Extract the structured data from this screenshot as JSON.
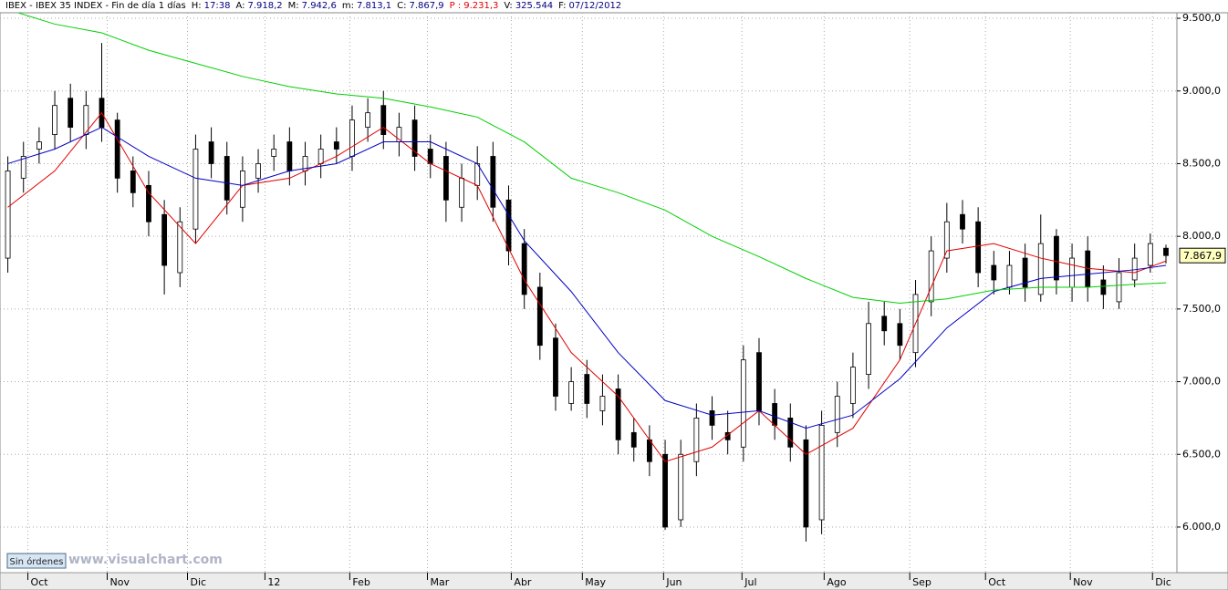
{
  "header": {
    "title": "IBEX - IBEX 35 INDEX - Fin de día 1 días",
    "items": [
      {
        "label": "H:",
        "value": "17:38",
        "color": "#000080"
      },
      {
        "label": "A:",
        "value": "7.918,2",
        "color": "#000080"
      },
      {
        "label": "M:",
        "value": "7.942,6",
        "color": "#000080"
      },
      {
        "label": "m:",
        "value": "7.813,1",
        "color": "#000080"
      },
      {
        "label": "C:",
        "value": "7.867,9",
        "color": "#000080"
      },
      {
        "label": "P :",
        "value": "9.231,3",
        "color": "#e00000"
      },
      {
        "label": "V:",
        "value": "325.544",
        "color": "#000080"
      },
      {
        "label": "F:",
        "value": "07/12/2012",
        "color": "#000080"
      }
    ]
  },
  "button": "Sin órdenes",
  "watermark": "www.visualchart.com",
  "chart_data": {
    "type": "candlestick",
    "xlim": [
      -0.5,
      74.7
    ],
    "ylim": [
      5686,
      9538
    ],
    "yticks": [
      {
        "value": 6000,
        "label": "6.000,0"
      },
      {
        "value": 6500,
        "label": "6.500,0"
      },
      {
        "value": 7000,
        "label": "7.000,0"
      },
      {
        "value": 7500,
        "label": "7.500,0"
      },
      {
        "value": 8000,
        "label": "8.000,0"
      },
      {
        "value": 8500,
        "label": "8.500,0"
      },
      {
        "value": 9000,
        "label": "9.000,0"
      },
      {
        "value": 9500,
        "label": "9.500,0"
      }
    ],
    "xticks": [
      {
        "value": 1.28,
        "label": "Oct"
      },
      {
        "value": 6.35,
        "label": "Nov"
      },
      {
        "value": 11.48,
        "label": "Dic"
      },
      {
        "value": 16.43,
        "label": "12"
      },
      {
        "value": 21.85,
        "label": "Feb"
      },
      {
        "value": 26.81,
        "label": "Mar"
      },
      {
        "value": 32.17,
        "label": "Abr"
      },
      {
        "value": 36.71,
        "label": "May"
      },
      {
        "value": 41.9,
        "label": "Jun"
      },
      {
        "value": 46.91,
        "label": "Jul"
      },
      {
        "value": 52.16,
        "label": "Ago"
      },
      {
        "value": 57.63,
        "label": "Sep"
      },
      {
        "value": 62.47,
        "label": "Oct"
      },
      {
        "value": 67.89,
        "label": "Nov"
      },
      {
        "value": 73.14,
        "label": "Dic"
      }
    ],
    "grid": true,
    "up_color": "#ffffff",
    "down_color": "#000000",
    "open": [
      7850,
      8400,
      8600,
      8700,
      8950,
      8700,
      8950,
      8800,
      8450,
      8350,
      8150,
      7750,
      8050,
      8650,
      8550,
      8200,
      8400,
      8550,
      8650,
      8450,
      8500,
      8650,
      8550,
      8750,
      8900,
      8650,
      8800,
      8600,
      8550,
      8200,
      8350,
      8550,
      8250,
      7950,
      7650,
      7300,
      6850,
      7050,
      6800,
      6950,
      6650,
      6600,
      6500,
      6050,
      6450,
      6800,
      6650,
      6550,
      7200,
      6850,
      6750,
      6600,
      6050,
      6650,
      6850,
      7050,
      7450,
      7400,
      7200,
      7550,
      7850,
      8150,
      8100,
      7800,
      7650,
      7850,
      7600,
      8000,
      7650,
      7900,
      7700,
      7550,
      7700,
      7800,
      7918.2
    ],
    "high": [
      8550,
      8650,
      8750,
      9000,
      9050,
      9000,
      9330,
      8850,
      8550,
      8450,
      8250,
      8200,
      8700,
      8750,
      8650,
      8550,
      8600,
      8700,
      8750,
      8650,
      8700,
      8750,
      8900,
      8950,
      9000,
      8850,
      8900,
      8700,
      8650,
      8500,
      8620,
      8650,
      8350,
      8050,
      7750,
      7400,
      7100,
      7150,
      7050,
      7050,
      6750,
      6700,
      6600,
      6600,
      6850,
      6900,
      6800,
      7250,
      7300,
      6950,
      6850,
      6700,
      6800,
      7000,
      7200,
      7550,
      7550,
      7500,
      7700,
      8000,
      8230,
      8250,
      8200,
      7900,
      7900,
      7950,
      8150,
      8050,
      7950,
      8000,
      7800,
      7850,
      7950,
      8020,
      7942.6
    ],
    "low": [
      7750,
      8300,
      8500,
      8600,
      8650,
      8600,
      8650,
      8300,
      8200,
      8000,
      7600,
      7650,
      7950,
      8400,
      8150,
      8100,
      8300,
      8450,
      8350,
      8350,
      8400,
      8500,
      8450,
      8650,
      8600,
      8550,
      8450,
      8400,
      8100,
      8100,
      8250,
      8100,
      7800,
      7500,
      7150,
      6800,
      6800,
      6750,
      6700,
      6500,
      6450,
      6350,
      5980,
      6000,
      6350,
      6600,
      6500,
      6450,
      6700,
      6600,
      6450,
      5900,
      5950,
      6550,
      6750,
      6950,
      7250,
      7150,
      7100,
      7450,
      7750,
      7950,
      7650,
      7600,
      7600,
      7550,
      7550,
      7600,
      7550,
      7550,
      7500,
      7500,
      7650,
      7750,
      7813.1
    ],
    "close": [
      8450,
      8550,
      8650,
      8900,
      8750,
      8900,
      8750,
      8400,
      8300,
      8100,
      7800,
      8100,
      8600,
      8500,
      8250,
      8450,
      8500,
      8600,
      8450,
      8550,
      8600,
      8600,
      8800,
      8850,
      8700,
      8750,
      8550,
      8500,
      8250,
      8400,
      8500,
      8200,
      7900,
      7600,
      7250,
      6900,
      7000,
      6850,
      6900,
      6600,
      6550,
      6450,
      6000,
      6500,
      6750,
      6700,
      6600,
      7150,
      6800,
      6700,
      6550,
      6000,
      6700,
      6900,
      7100,
      7400,
      7350,
      7250,
      7600,
      7900,
      8100,
      8050,
      7750,
      7700,
      7800,
      7650,
      7950,
      7700,
      7850,
      7650,
      7600,
      7750,
      7850,
      7950,
      7867.9
    ],
    "lines": [
      {
        "color": "#e00000",
        "x": [
          0,
          3,
          6,
          9,
          12,
          15,
          18,
          21,
          24,
          27,
          30,
          33,
          36,
          39,
          42,
          45,
          48,
          51,
          54,
          57,
          60,
          63,
          66,
          69,
          72,
          74
        ],
        "values": [
          8200,
          8450,
          8850,
          8300,
          7950,
          8350,
          8400,
          8550,
          8750,
          8500,
          8350,
          7700,
          7200,
          6900,
          6450,
          6550,
          6800,
          6500,
          6680,
          7150,
          7900,
          7950,
          7850,
          7780,
          7750,
          7830
        ]
      },
      {
        "color": "#0000c0",
        "x": [
          0,
          3,
          6,
          9,
          12,
          15,
          18,
          21,
          24,
          27,
          30,
          33,
          36,
          39,
          42,
          45,
          48,
          51,
          54,
          57,
          60,
          63,
          66,
          69,
          72,
          74
        ],
        "values": [
          8500,
          8600,
          8750,
          8550,
          8400,
          8350,
          8450,
          8500,
          8650,
          8650,
          8500,
          7970,
          7620,
          7200,
          6870,
          6770,
          6800,
          6680,
          6770,
          7020,
          7370,
          7620,
          7710,
          7740,
          7770,
          7800
        ]
      },
      {
        "color": "#00d000",
        "x": [
          0,
          3,
          6,
          9,
          12,
          15,
          18,
          21,
          24,
          27,
          30,
          33,
          36,
          39,
          42,
          45,
          48,
          51,
          54,
          57,
          60,
          63,
          66,
          69,
          72,
          74
        ],
        "values": [
          9560,
          9460,
          9400,
          9280,
          9190,
          9100,
          9030,
          8980,
          8950,
          8890,
          8820,
          8650,
          8400,
          8300,
          8180,
          8000,
          7860,
          7710,
          7580,
          7540,
          7570,
          7630,
          7650,
          7650,
          7670,
          7680
        ]
      }
    ],
    "last_price": {
      "value": 7867.9,
      "label": "7.867,9"
    }
  }
}
